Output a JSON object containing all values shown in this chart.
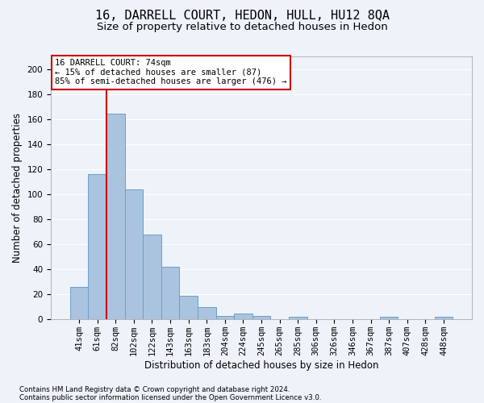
{
  "title": "16, DARRELL COURT, HEDON, HULL, HU12 8QA",
  "subtitle": "Size of property relative to detached houses in Hedon",
  "xlabel": "Distribution of detached houses by size in Hedon",
  "ylabel": "Number of detached properties",
  "bar_labels": [
    "41sqm",
    "61sqm",
    "82sqm",
    "102sqm",
    "122sqm",
    "143sqm",
    "163sqm",
    "183sqm",
    "204sqm",
    "224sqm",
    "245sqm",
    "265sqm",
    "285sqm",
    "306sqm",
    "326sqm",
    "346sqm",
    "367sqm",
    "387sqm",
    "407sqm",
    "428sqm",
    "448sqm"
  ],
  "bar_values": [
    26,
    116,
    164,
    104,
    68,
    42,
    19,
    10,
    3,
    5,
    3,
    0,
    2,
    0,
    0,
    0,
    0,
    2,
    0,
    0,
    2
  ],
  "bar_color": "#aac4df",
  "bar_edgecolor": "#6a9fc8",
  "ylim": [
    0,
    210
  ],
  "yticks": [
    0,
    20,
    40,
    60,
    80,
    100,
    120,
    140,
    160,
    180,
    200
  ],
  "red_line_x": 1.5,
  "annotation_title": "16 DARRELL COURT: 74sqm",
  "annotation_line1": "← 15% of detached houses are smaller (87)",
  "annotation_line2": "85% of semi-detached houses are larger (476) →",
  "annotation_box_facecolor": "#ffffff",
  "annotation_box_edgecolor": "#cc0000",
  "red_line_color": "#cc0000",
  "footnote1": "Contains HM Land Registry data © Crown copyright and database right 2024.",
  "footnote2": "Contains public sector information licensed under the Open Government Licence v3.0.",
  "background_color": "#eef2f9",
  "grid_color": "#ffffff",
  "title_fontsize": 11,
  "subtitle_fontsize": 9.5,
  "ylabel_fontsize": 8.5,
  "xlabel_fontsize": 8.5,
  "tick_fontsize": 7.5,
  "annot_fontsize": 7.5,
  "footnote_fontsize": 6.2
}
